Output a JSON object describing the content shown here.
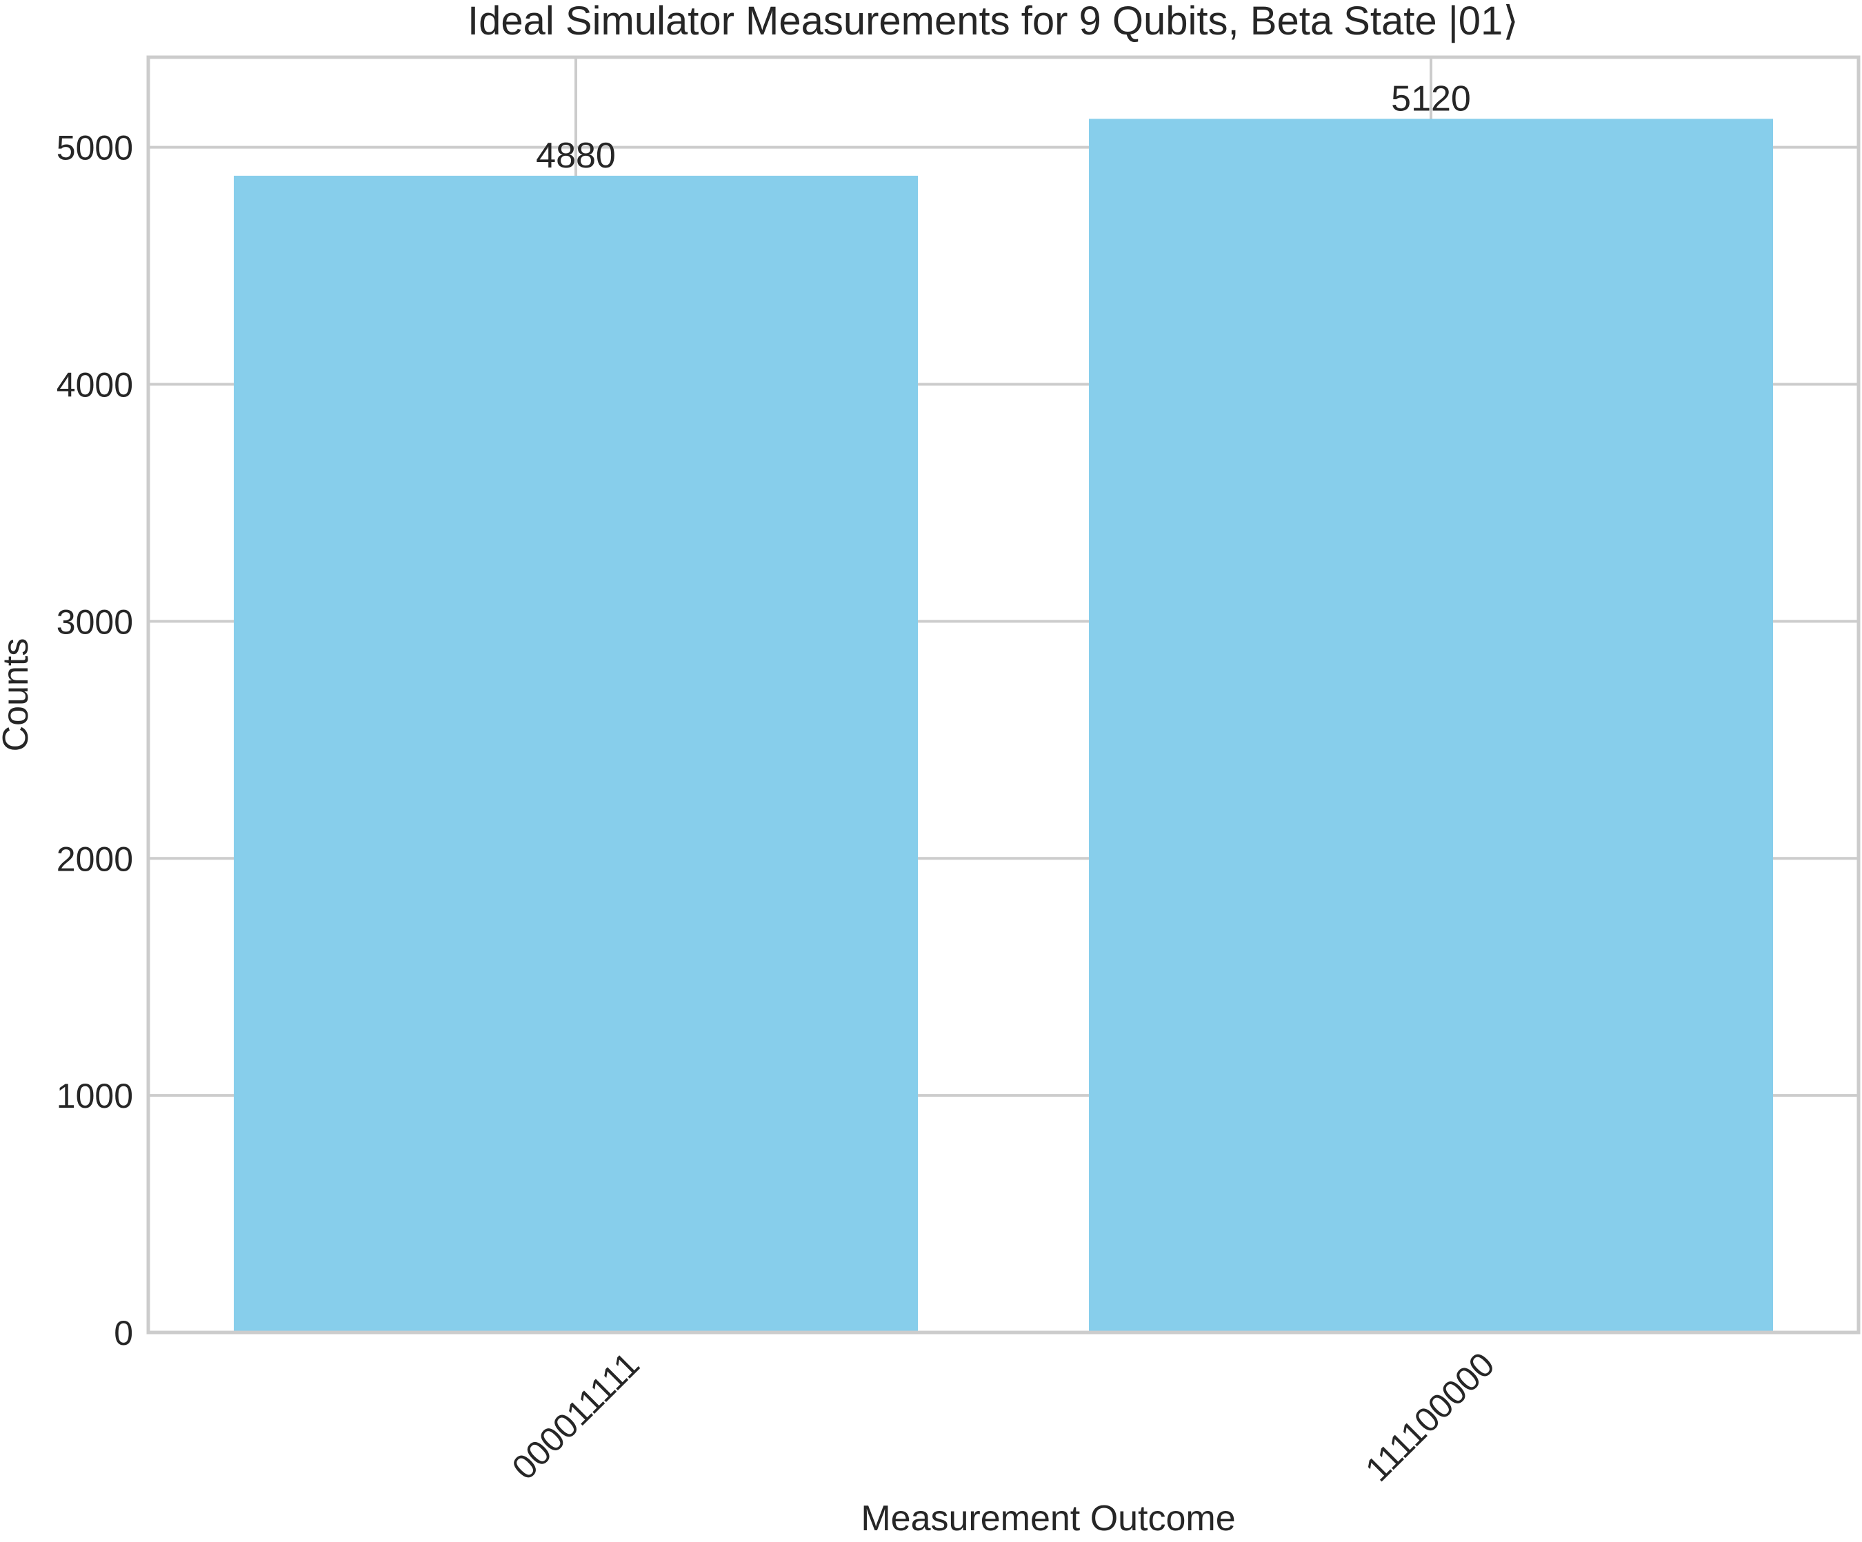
{
  "chart_data": {
    "type": "bar",
    "title": "Ideal Simulator Measurements for 9 Qubits, Beta State |01⟩",
    "xlabel": "Measurement Outcome",
    "ylabel": "Counts",
    "categories": [
      "000011111",
      "111100000"
    ],
    "values": [
      4880,
      5120
    ],
    "data_labels": [
      "4880",
      "5120"
    ],
    "ylim": [
      0,
      5380
    ],
    "yticks": [
      0,
      1000,
      2000,
      3000,
      4000,
      5000
    ],
    "ytick_labels": [
      "0",
      "1000",
      "2000",
      "3000",
      "4000",
      "5000"
    ],
    "grid": true,
    "bar_color": "#87CEEB",
    "grid_color": "#cccccc"
  }
}
